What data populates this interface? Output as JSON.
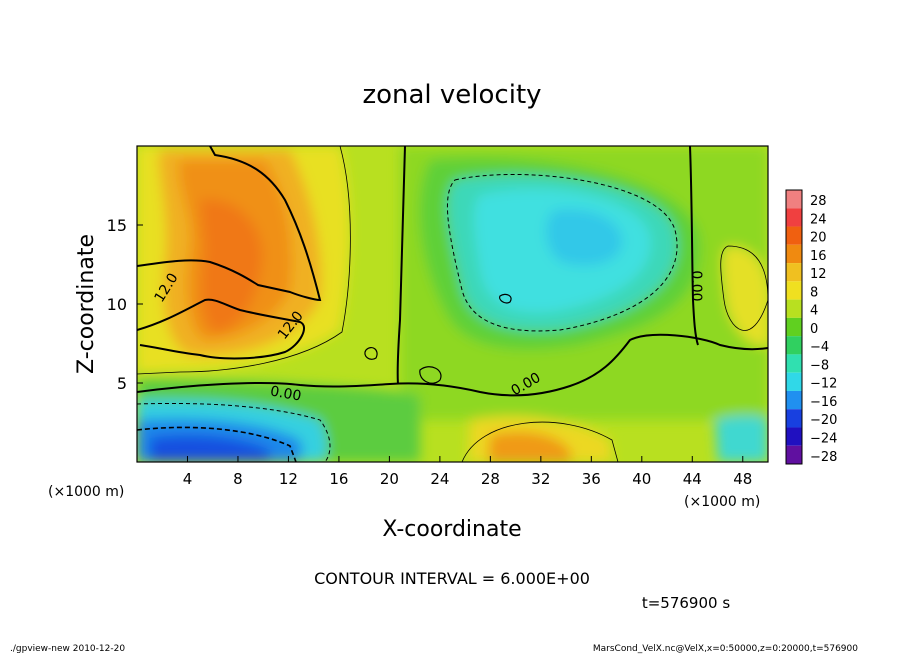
{
  "chart_data": {
    "type": "heatmap",
    "title": "zonal velocity",
    "xlabel": "X-coordinate",
    "ylabel": "Z-coordinate",
    "x_unit_label": "(×1000 m)",
    "y_unit_label": "(×1000 m)",
    "xlim": [
      0,
      50
    ],
    "ylim": [
      0,
      20
    ],
    "x_ticks": [
      4,
      8,
      12,
      16,
      20,
      24,
      28,
      32,
      36,
      40,
      44,
      48
    ],
    "y_ticks": [
      5,
      10,
      15
    ],
    "colorbar": {
      "levels": [
        28,
        24,
        20,
        16,
        12,
        8,
        4,
        0,
        -4,
        -8,
        -12,
        -16,
        -20,
        -24,
        -28
      ],
      "labels": [
        "28",
        "24",
        "20",
        "16",
        "12",
        "8",
        "4",
        "0",
        "−4",
        "−8",
        "−12",
        "−16",
        "−20",
        "−24",
        "−28"
      ],
      "colors": [
        "#f08080",
        "#f04040",
        "#f06010",
        "#f08a10",
        "#f0c020",
        "#f0e020",
        "#b8e020",
        "#60d020",
        "#30d060",
        "#30e0b0",
        "#30d8e8",
        "#2090f0",
        "#1840e0",
        "#2010c0",
        "#6010a0"
      ]
    },
    "contour_labels": [
      "12.0",
      "12.0",
      "0.00",
      "0.00",
      "0.00"
    ],
    "contour_interval_text": "CONTOUR INTERVAL = 6.000E+00",
    "time_text": "t=576900 s",
    "grid": false
  },
  "footer": {
    "left": "./gpview-new  2010-12-20",
    "right": "MarsCond_VelX.nc@VelX,x=0:50000,z=0:20000,t=576900"
  }
}
